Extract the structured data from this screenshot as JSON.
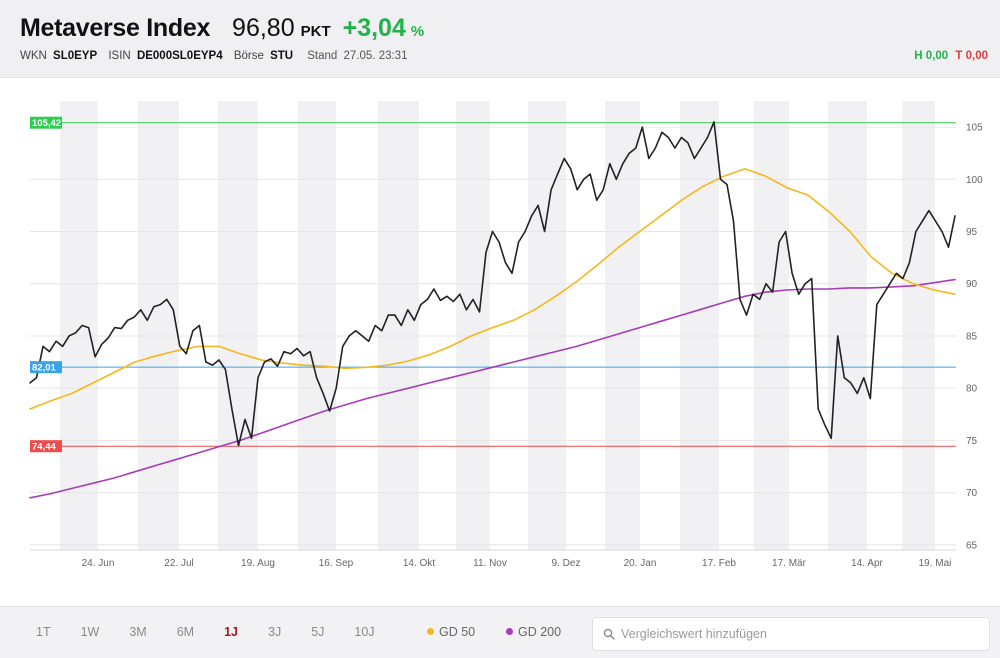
{
  "header": {
    "title": "Metaverse Index",
    "price": "96,80",
    "unit": "PKT",
    "change": "+3,04",
    "change_unit": "%",
    "wkn_label": "WKN",
    "wkn": "SL0EYP",
    "isin_label": "ISIN",
    "isin": "DE000SL0EYP4",
    "exchange_label": "Börse",
    "exchange": "STU",
    "stand_label": "Stand",
    "stand": "27.05. 23:31",
    "high": "H 0,00",
    "low": "T 0,00"
  },
  "colors": {
    "up": "#22b14c",
    "down": "#e33b3b",
    "price_line": "#222222",
    "gd50": "#f5b81c",
    "gd200": "#a63cb8",
    "ref_high": "#2ecc52",
    "ref_mid": "#37a3e8",
    "ref_low": "#ee4b4b",
    "active_range": "#a3182b"
  },
  "footer": {
    "ranges": [
      "1T",
      "1W",
      "3M",
      "6M",
      "1J",
      "3J",
      "5J",
      "10J"
    ],
    "active_range": "1J",
    "gd50_label": "GD 50",
    "gd200_label": "GD 200",
    "search_placeholder": "Vergleichswert hinzufügen"
  },
  "chart_data": {
    "type": "line",
    "x_tick_labels": [
      "24. Jun",
      "22. Jul",
      "19. Aug",
      "16. Sep",
      "14. Okt",
      "11. Nov",
      "9. Dez",
      "20. Jan",
      "17. Feb",
      "17. Mär",
      "14. Apr",
      "19. Mai"
    ],
    "y_ticks": [
      65,
      70,
      75,
      80,
      85,
      90,
      95,
      100,
      105
    ],
    "ylim": [
      64.5,
      107.5
    ],
    "grid": "alternating monthly column bands",
    "reference_lines": [
      {
        "label": "105,42",
        "value": 105.42,
        "role": "high"
      },
      {
        "label": "82,01",
        "value": 82.01,
        "role": "current"
      },
      {
        "label": "74,44",
        "value": 74.44,
        "role": "low"
      }
    ],
    "series": [
      {
        "name": "",
        "role": "price",
        "values": [
          80.5,
          81,
          84,
          83.5,
          84.5,
          84,
          85,
          85.3,
          86,
          85.8,
          83,
          84.2,
          84.8,
          85.8,
          85.7,
          86.5,
          86.8,
          87.5,
          86.5,
          87.8,
          88,
          88.5,
          87.5,
          84,
          83.3,
          85.5,
          86,
          82.5,
          82.2,
          82.7,
          81.8,
          78,
          74.5,
          77,
          75.2,
          81,
          82.5,
          82.8,
          82.1,
          83.5,
          83.3,
          83.8,
          83.1,
          83.5,
          81,
          79.5,
          77.8,
          80,
          84,
          85,
          85.5,
          85,
          84.5,
          86,
          85.5,
          87,
          87,
          86,
          87.5,
          86.5,
          88,
          88.5,
          89.5,
          88.4,
          88.8,
          88.3,
          89,
          87.5,
          88.5,
          87.3,
          93,
          95,
          94,
          92,
          91,
          94,
          95,
          96.5,
          97.5,
          95,
          99,
          100.5,
          102,
          101,
          99,
          100,
          100.5,
          98,
          99,
          101.5,
          100,
          101.5,
          102.5,
          103,
          105,
          102,
          103,
          104.5,
          104,
          103,
          104,
          103.5,
          102,
          103,
          104,
          105.5,
          100,
          99.5,
          96,
          88.5,
          87,
          89,
          88.5,
          90,
          89.2,
          94,
          95,
          91,
          89,
          90,
          90.5,
          78,
          76.5,
          75.2,
          85,
          81,
          80.5,
          79.5,
          81,
          79,
          88,
          89,
          90,
          91,
          90.5,
          92,
          95,
          96,
          97,
          96,
          95,
          93.5,
          96.5
        ]
      },
      {
        "name": "GD 50",
        "role": "gd50",
        "values": [
          78,
          78.8,
          79.5,
          80.5,
          81.5,
          82.5,
          83.1,
          83.6,
          84.0,
          84.0,
          83.3,
          82.7,
          82.4,
          82.2,
          82.1,
          81.9,
          82.0,
          82.2,
          82.6,
          83.2,
          84.0,
          85.0,
          85.8,
          86.5,
          87.5,
          88.8,
          90.2,
          91.8,
          93.5,
          95.0,
          96.5,
          98.0,
          99.3,
          100.3,
          101.0,
          100.3,
          99.2,
          98.5,
          96.9,
          95.0,
          92.6,
          91.0,
          90.0,
          89.4,
          89.0
        ]
      },
      {
        "name": "GD 200",
        "role": "gd200",
        "values": [
          69.5,
          69.9,
          70.4,
          70.9,
          71.4,
          72.0,
          72.6,
          73.2,
          73.8,
          74.4,
          75.0,
          75.7,
          76.4,
          77.1,
          77.8,
          78.4,
          79.0,
          79.5,
          80.0,
          80.5,
          81.0,
          81.5,
          82.0,
          82.5,
          83.0,
          83.5,
          84.0,
          84.6,
          85.2,
          85.8,
          86.4,
          87.0,
          87.6,
          88.2,
          88.8,
          89.2,
          89.4,
          89.5,
          89.5,
          89.6,
          89.6,
          89.7,
          89.8,
          90.1,
          90.4
        ]
      }
    ]
  }
}
